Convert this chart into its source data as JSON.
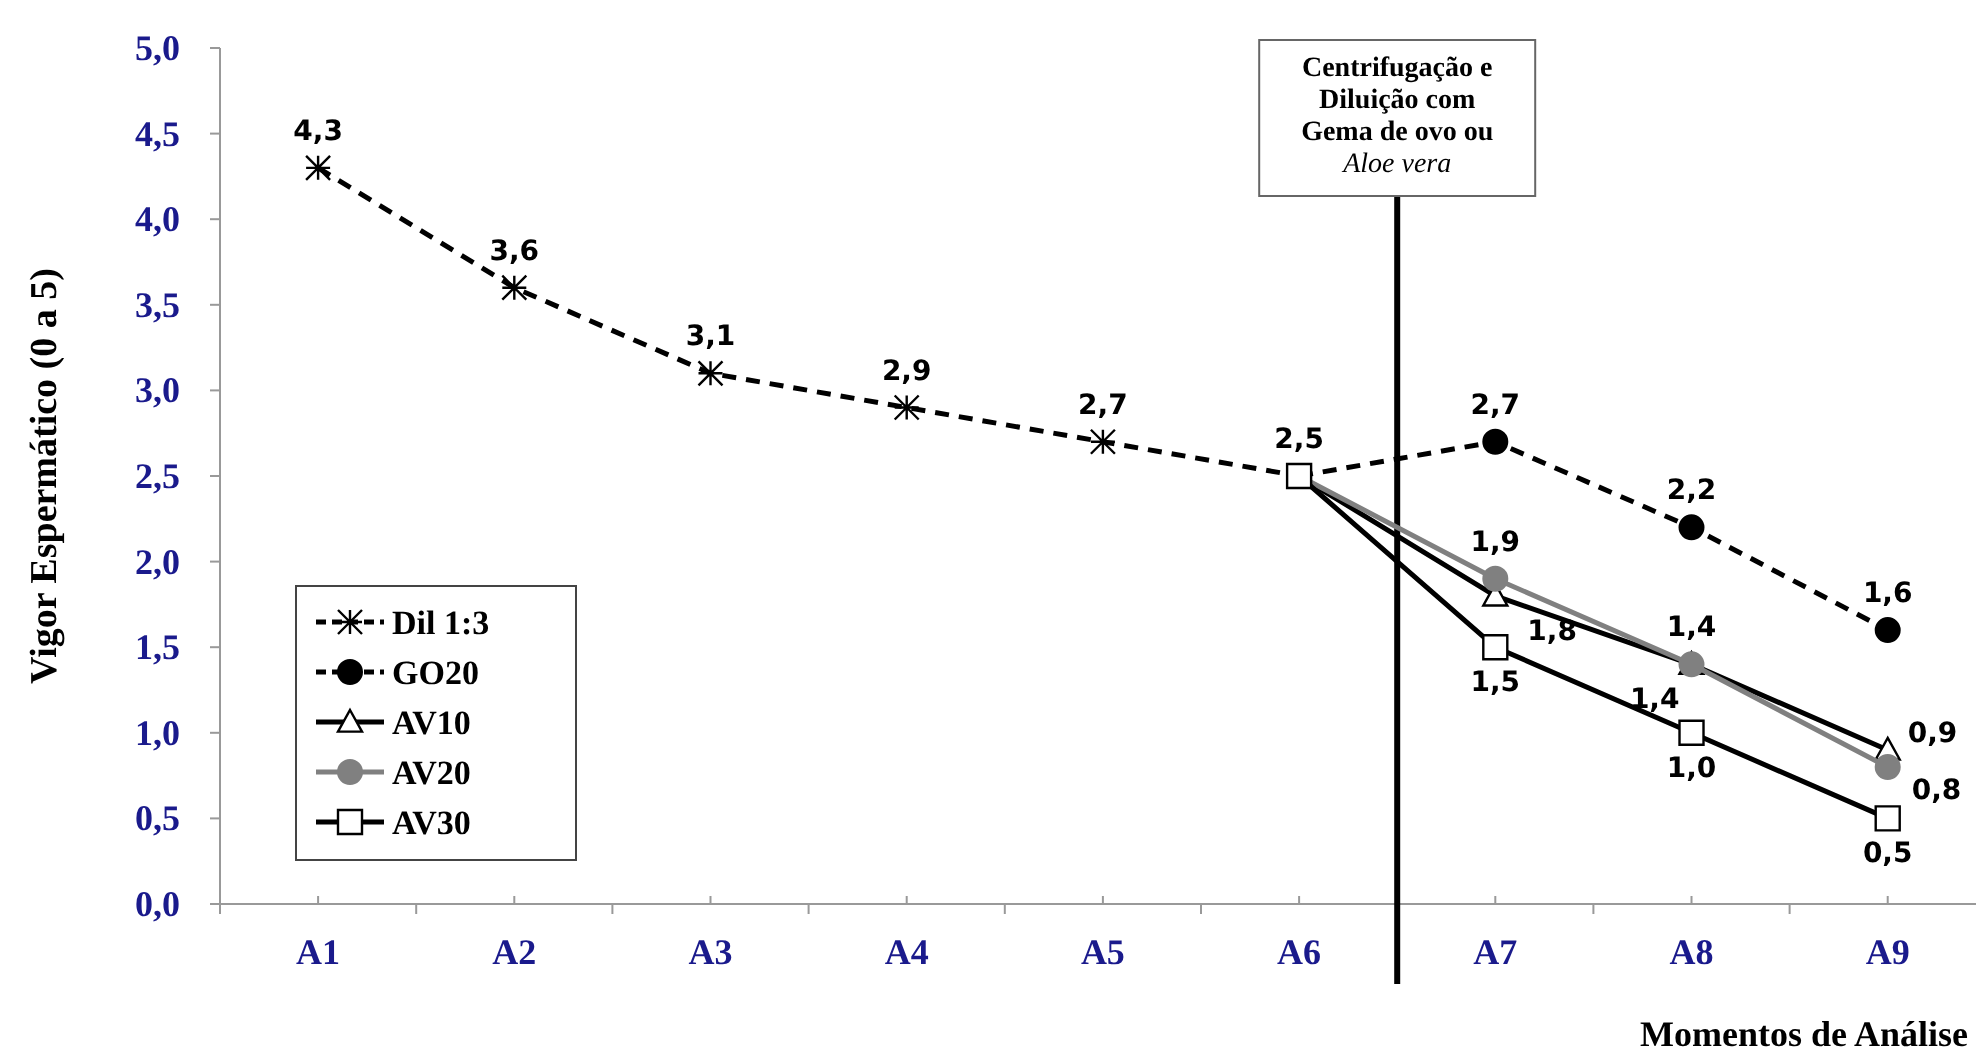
{
  "chart_data": {
    "type": "line",
    "ylabel": "Vigor Espermático (0 a 5)",
    "xlabel": "Momentos de Análise",
    "categories": [
      "A1",
      "A2",
      "A3",
      "A4",
      "A5",
      "A6",
      "A7",
      "A8",
      "A9"
    ],
    "ylim": [
      0,
      5
    ],
    "yticks": [
      {
        "value": 0,
        "label": "0,0"
      },
      {
        "value": 0.5,
        "label": "0,5"
      },
      {
        "value": 1,
        "label": "1,0"
      },
      {
        "value": 1.5,
        "label": "1,5"
      },
      {
        "value": 2,
        "label": "2,0"
      },
      {
        "value": 2.5,
        "label": "2,5"
      },
      {
        "value": 3,
        "label": "3,0"
      },
      {
        "value": 3.5,
        "label": "3,5"
      },
      {
        "value": 4,
        "label": "4,0"
      },
      {
        "value": 4.5,
        "label": "4,5"
      },
      {
        "value": 5,
        "label": "5,0"
      }
    ],
    "series": [
      {
        "name": "Dil 1:3",
        "color": "#000000",
        "marker": "cross",
        "line_style": "dashed",
        "values": [
          4.3,
          3.6,
          3.1,
          2.9,
          2.7,
          2.5,
          null,
          null,
          null
        ],
        "value_labels": [
          "4,3",
          "3,6",
          "3,1",
          "2,9",
          "2,7",
          "2,5",
          null,
          null,
          null
        ]
      },
      {
        "name": "GO20",
        "color": "#000000",
        "marker": "circle",
        "line_style": "dashed",
        "values": [
          null,
          null,
          null,
          null,
          null,
          2.5,
          2.7,
          2.2,
          1.6
        ],
        "value_labels": [
          null,
          null,
          null,
          null,
          null,
          null,
          "2,7",
          "2,2",
          "1,6"
        ]
      },
      {
        "name": "AV10",
        "color": "#000000",
        "marker": "triangle",
        "line_style": "solid",
        "values": [
          null,
          null,
          null,
          null,
          null,
          2.5,
          1.8,
          1.4,
          0.9
        ],
        "value_labels": [
          null,
          null,
          null,
          null,
          null,
          null,
          "1,8",
          "1,4",
          "0,9"
        ]
      },
      {
        "name": "AV20",
        "color": "#808080",
        "marker": "circle",
        "line_style": "solid",
        "values": [
          null,
          null,
          null,
          null,
          null,
          2.5,
          1.9,
          1.4,
          0.8
        ],
        "value_labels": [
          null,
          null,
          null,
          null,
          null,
          null,
          "1,9",
          "1,4",
          "0,8"
        ]
      },
      {
        "name": "AV30",
        "color": "#000000",
        "marker": "square",
        "line_style": "solid",
        "values": [
          null,
          null,
          null,
          null,
          null,
          2.5,
          1.5,
          1.0,
          0.5
        ],
        "value_labels": [
          null,
          null,
          null,
          null,
          null,
          null,
          "1,5",
          "1,0",
          "0,5"
        ]
      }
    ],
    "annotations": [
      "Centrifugação e\nDiluição  com\nGema de ovo ou\nAloe vera"
    ],
    "legend": "bottom left",
    "grid": false
  }
}
